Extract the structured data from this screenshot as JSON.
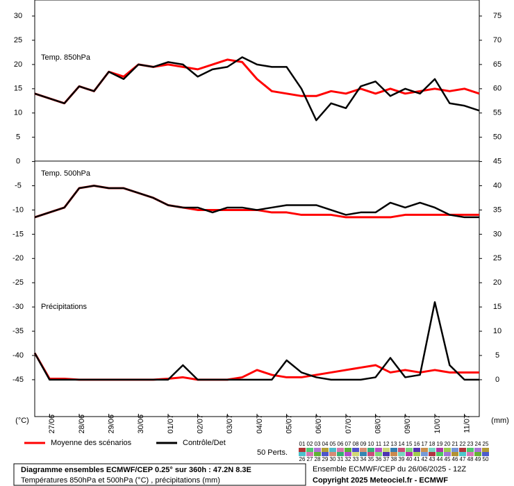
{
  "chart_data": {
    "type": "line",
    "panel_labels": {
      "t850": "Temp. 850hPa",
      "t500": "Temp. 500hPa",
      "precip": "Précipitations"
    },
    "y_unit": "(°C)",
    "y2_unit": "(mm)",
    "x_labels": [
      "27/06",
      "28/06",
      "29/06",
      "30/06",
      "01/07",
      "02/07",
      "03/07",
      "04/07",
      "05/07",
      "06/07",
      "07/07",
      "08/07",
      "09/07",
      "10/07",
      "11/07"
    ],
    "ylim": [
      -52.6,
      33.3
    ],
    "yticks": [
      30,
      25,
      20,
      15,
      10,
      5,
      0,
      -5,
      -10,
      -15,
      -20,
      -25,
      -30,
      -35,
      -40,
      -45
    ],
    "y2lim": [
      -7.6,
      78.3
    ],
    "y2ticks": [
      75,
      70,
      65,
      60,
      55,
      50,
      45,
      40,
      35,
      30,
      25,
      20,
      15,
      10,
      5,
      0
    ],
    "series": [
      {
        "name": "Moyenne des scénarios",
        "color": "#ff0000",
        "t850": [
          14,
          13,
          12,
          15.5,
          14.5,
          18.5,
          17.5,
          20,
          19.5,
          20,
          19.5,
          19,
          20,
          21,
          20.5,
          17,
          14.5,
          14,
          13.5,
          13.5,
          14.5,
          14,
          15,
          14,
          15,
          14,
          14.5,
          15,
          14.5,
          15,
          14
        ],
        "t500": [
          -11.5,
          -10.5,
          -9.5,
          -5.5,
          -5,
          -5.5,
          -5.5,
          -6.5,
          -7.5,
          -9,
          -9.5,
          -10,
          -10,
          -10,
          -10,
          -10,
          -10.5,
          -10.5,
          -11,
          -11,
          -11,
          -11.5,
          -11.5,
          -11.5,
          -11.5,
          -11,
          -11,
          -11,
          -11,
          -11,
          -11
        ],
        "precip": [
          5.5,
          0.2,
          0.2,
          0,
          0,
          0,
          0,
          0,
          0,
          0.2,
          0.5,
          0,
          0,
          0,
          0.5,
          2,
          1,
          0.5,
          0.5,
          1,
          1.5,
          2,
          2.5,
          3,
          1.5,
          2,
          1.5,
          2,
          1.5,
          1.5,
          1.5
        ]
      },
      {
        "name": "Contrôle/Det",
        "color": "#000000",
        "t850": [
          14,
          13,
          12,
          15.5,
          14.5,
          18.5,
          17,
          20,
          19.5,
          20.5,
          20,
          17.5,
          19,
          19.5,
          21.5,
          20,
          19.5,
          19.5,
          15,
          8.5,
          12,
          11,
          15.5,
          16.5,
          13.5,
          15,
          14,
          17,
          12,
          11.5,
          10.5
        ],
        "t500": [
          -11.5,
          -10.5,
          -9.5,
          -5.5,
          -5,
          -5.5,
          -5.5,
          -6.5,
          -7.5,
          -9,
          -9.5,
          -9.5,
          -10.5,
          -9.5,
          -9.5,
          -10,
          -9.5,
          -9,
          -9,
          -9,
          -10,
          -11,
          -10.5,
          -10.5,
          -8.5,
          -9.5,
          -8.5,
          -9.5,
          -11,
          -11.5,
          -11.5
        ],
        "precip": [
          5.5,
          0,
          0,
          0,
          0,
          0,
          0,
          0,
          0,
          0,
          3,
          0,
          0,
          0,
          0,
          0,
          0,
          4,
          1.5,
          0.5,
          0,
          0,
          0,
          0.5,
          4.5,
          0.5,
          1,
          16,
          3,
          0,
          0
        ]
      }
    ],
    "perts_label": "50 Perts.",
    "perts": [
      "01",
      "02",
      "03",
      "04",
      "05",
      "06",
      "07",
      "08",
      "09",
      "10",
      "11",
      "12",
      "13",
      "14",
      "15",
      "16",
      "17",
      "18",
      "19",
      "20",
      "21",
      "22",
      "23",
      "24",
      "25",
      "26",
      "27",
      "28",
      "29",
      "30",
      "31",
      "32",
      "33",
      "34",
      "35",
      "36",
      "37",
      "38",
      "39",
      "40",
      "41",
      "42",
      "43",
      "44",
      "45",
      "46",
      "47",
      "48",
      "49",
      "50"
    ],
    "footer": {
      "title": "Diagramme ensembles ECMWF/CEP 0.25° sur 360h : 47.2N 8.3E",
      "subtitle": "Températures 850hPa et 500hPa (°C) , précipitations (mm)",
      "run": "Ensemble ECMWF/CEP du 26/06/2025 - 12Z",
      "copyright": "Copyright 2025 Meteociel.fr - ECMWF"
    }
  }
}
